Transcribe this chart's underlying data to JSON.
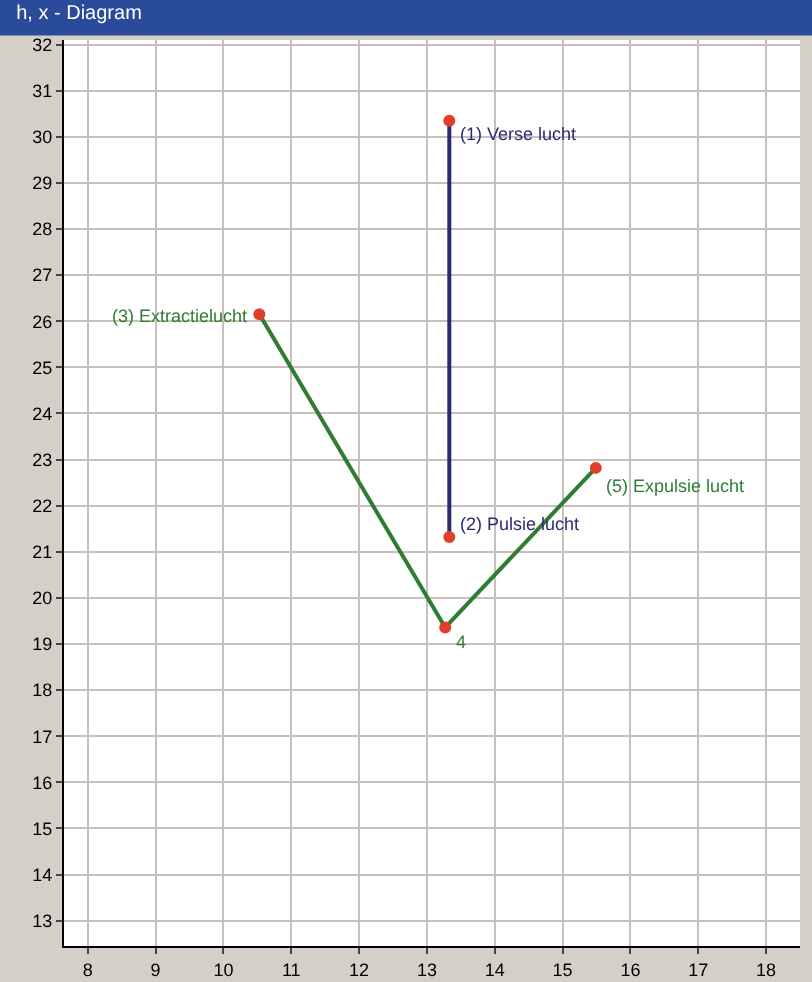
{
  "chart_data": {
    "type": "line",
    "title": "h, x - Diagram",
    "xlim": [
      7.65,
      18.5
    ],
    "ylim": [
      12.45,
      32.1
    ],
    "xticks": [
      8,
      9,
      10,
      11,
      12,
      13,
      14,
      15,
      16,
      17,
      18
    ],
    "yticks": [
      13,
      14,
      15,
      16,
      17,
      18,
      19,
      20,
      21,
      22,
      23,
      24,
      25,
      26,
      27,
      28,
      29,
      30,
      31,
      32
    ],
    "grid": true,
    "marker": "circle",
    "line_style": "solid",
    "series": [
      {
        "color": "#2b2b70",
        "colors": [
          "#e0402a",
          "#e0402a"
        ],
        "x": [
          13.33,
          13.33
        ],
        "values": [
          30.35,
          21.32
        ]
      },
      {
        "color": "#2f7d32",
        "colors": [
          "#e0402a",
          "#e0402a",
          "#e0402a"
        ],
        "x": [
          10.53,
          13.27,
          15.49
        ],
        "values": [
          26.15,
          19.36,
          22.82
        ]
      }
    ],
    "annotations": [
      {
        "text": "(1) Verse lucht",
        "x": 13.33,
        "y": 30.35
      },
      {
        "text": "(2) Pulsie lucht",
        "x": 13.33,
        "y": 21.32
      },
      {
        "text": "(3) Extractielucht",
        "x": 10.53,
        "y": 26.15
      },
      {
        "text": "4",
        "x": 13.27,
        "y": 19.36
      },
      {
        "text": "(5) Expulsie lucht",
        "x": 15.49,
        "y": 22.82
      }
    ]
  }
}
